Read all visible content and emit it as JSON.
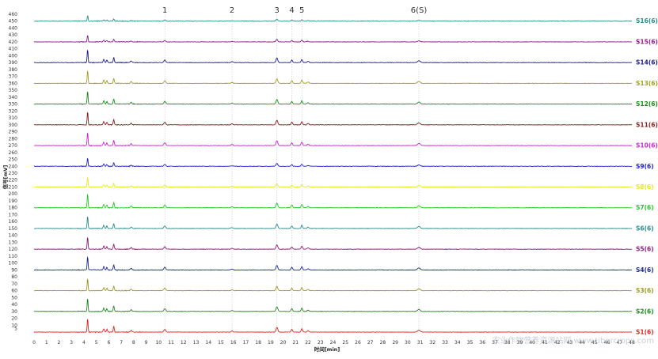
{
  "chart_data": {
    "type": "line",
    "xlabel": "时间[min]",
    "ylabel": "信号[mV]",
    "xlim": [
      0,
      48
    ],
    "ylim": [
      0,
      460
    ],
    "x_ticks": [
      0,
      1,
      2,
      3,
      4,
      5,
      6,
      7,
      8,
      9,
      10,
      11,
      12,
      13,
      14,
      15,
      16,
      17,
      18,
      19,
      20,
      21,
      22,
      23,
      24,
      25,
      26,
      27,
      28,
      29,
      30,
      31,
      32,
      33,
      34,
      35,
      36,
      37,
      38,
      39,
      40,
      41,
      42,
      43,
      44,
      45,
      46,
      47,
      48
    ],
    "y_ticks": [
      5,
      10,
      20,
      30,
      40,
      50,
      60,
      70,
      80,
      90,
      100,
      110,
      120,
      130,
      140,
      150,
      160,
      170,
      180,
      190,
      200,
      210,
      220,
      230,
      240,
      250,
      260,
      270,
      280,
      290,
      300,
      310,
      320,
      330,
      340,
      350,
      360,
      370,
      380,
      390,
      400,
      410,
      420,
      430,
      440,
      450,
      460
    ],
    "grid": false,
    "legend_position": "right",
    "peak_markers": [
      {
        "label": "1",
        "x": 10.5
      },
      {
        "label": "2",
        "x": 15.9
      },
      {
        "label": "3",
        "x": 19.5
      },
      {
        "label": "4",
        "x": 20.7
      },
      {
        "label": "5",
        "x": 21.5
      },
      {
        "label": "6(S)",
        "x": 30.9
      }
    ],
    "series": [
      {
        "name": "S1(6)",
        "baseline": 0,
        "color": "#e52222",
        "scale": 1.0
      },
      {
        "name": "S2(6)",
        "baseline": 30,
        "color": "#1a8c1a",
        "scale": 0.95
      },
      {
        "name": "S3(6)",
        "baseline": 60,
        "color": "#9a9a22",
        "scale": 0.9
      },
      {
        "name": "S4(6)",
        "baseline": 90,
        "color": "#1c2a8c",
        "scale": 0.95
      },
      {
        "name": "S5(6)",
        "baseline": 120,
        "color": "#8c1c7a",
        "scale": 0.9
      },
      {
        "name": "S6(6)",
        "baseline": 150,
        "color": "#2a8c8c",
        "scale": 0.9
      },
      {
        "name": "S7(6)",
        "baseline": 180,
        "color": "#22cc22",
        "scale": 1.0
      },
      {
        "name": "S8(6)",
        "baseline": 210,
        "color": "#e8e822",
        "scale": 0.7
      },
      {
        "name": "S9(6)",
        "baseline": 240,
        "color": "#2222cc",
        "scale": 0.6
      },
      {
        "name": "S10(6)",
        "baseline": 270,
        "color": "#d622d6",
        "scale": 1.0
      },
      {
        "name": "S11(6)",
        "baseline": 300,
        "color": "#8c1c1c",
        "scale": 0.95
      },
      {
        "name": "S12(6)",
        "baseline": 330,
        "color": "#1a8c1a",
        "scale": 0.95
      },
      {
        "name": "S13(6)",
        "baseline": 360,
        "color": "#a0a022",
        "scale": 0.95
      },
      {
        "name": "S14(6)",
        "baseline": 390,
        "color": "#1c1c8c",
        "scale": 0.95
      },
      {
        "name": "S15(6)",
        "baseline": 420,
        "color": "#8c1c8c",
        "scale": 0.5
      },
      {
        "name": "S16(6)",
        "baseline": 450,
        "color": "#2a8c8c",
        "scale": 0.4
      }
    ],
    "peaks": [
      {
        "x": 4.3,
        "height": 20,
        "width": 0.05
      },
      {
        "x": 5.6,
        "height": 5,
        "width": 0.07
      },
      {
        "x": 5.85,
        "height": 4,
        "width": 0.06
      },
      {
        "x": 6.4,
        "height": 8,
        "width": 0.06
      },
      {
        "x": 7.8,
        "height": 2.5,
        "width": 0.08
      },
      {
        "x": 10.5,
        "height": 4,
        "width": 0.1
      },
      {
        "x": 15.9,
        "height": 1.5,
        "width": 0.1
      },
      {
        "x": 19.5,
        "height": 7,
        "width": 0.1
      },
      {
        "x": 20.7,
        "height": 4,
        "width": 0.08
      },
      {
        "x": 21.5,
        "height": 5,
        "width": 0.08
      },
      {
        "x": 22.0,
        "height": 2,
        "width": 0.1
      },
      {
        "x": 30.9,
        "height": 3,
        "width": 0.15
      }
    ]
  },
  "watermark": "农业作物营养资源站网 www.tibercrops.com"
}
